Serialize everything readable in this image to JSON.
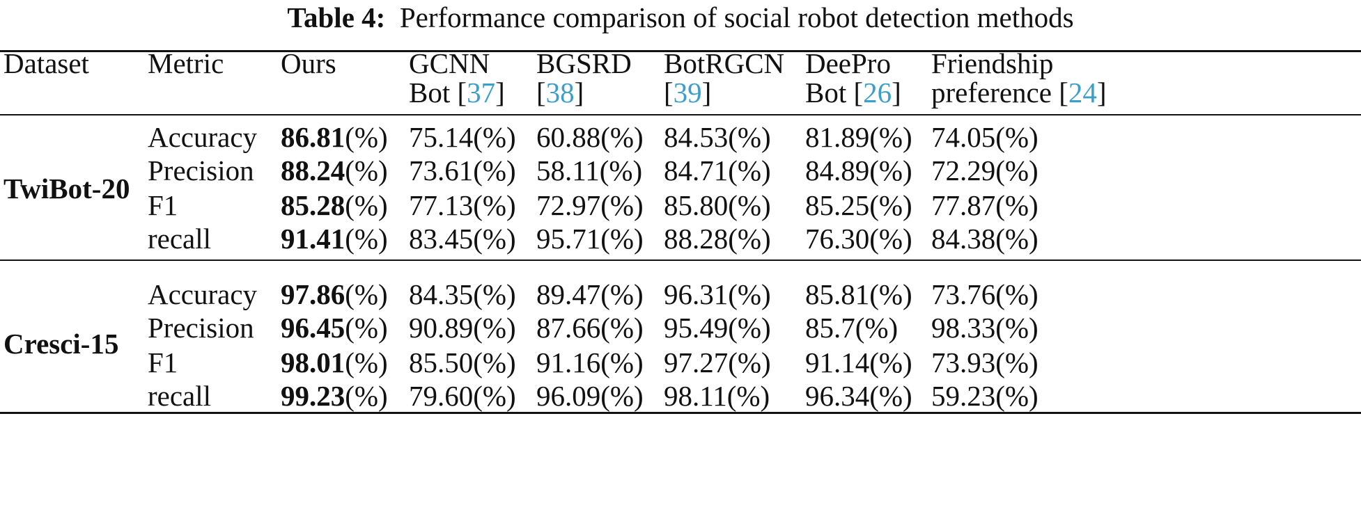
{
  "caption": {
    "label": "Table 4:",
    "text": "Performance comparison of social robot detection methods"
  },
  "table": {
    "headers": [
      {
        "line1": "Dataset",
        "line2": "",
        "ref": ""
      },
      {
        "line1": "Metric",
        "line2": "",
        "ref": ""
      },
      {
        "line1": "Ours",
        "line2": "",
        "ref": ""
      },
      {
        "line1": "GCNN",
        "line2": "Bot",
        "ref": "37"
      },
      {
        "line1": "BGSRD",
        "line2": "",
        "ref": "38"
      },
      {
        "line1": "BotRGCN",
        "line2": "",
        "ref": "39"
      },
      {
        "line1": "DeePro",
        "line2": "Bot",
        "ref": "26"
      },
      {
        "line1": "Friendship",
        "line2": "preference",
        "ref": "24"
      }
    ],
    "percent_suffix": "(%)",
    "groups": [
      {
        "dataset": "TwiBot-20",
        "rows": [
          {
            "metric": "Accuracy",
            "values": [
              "86.81",
              "75.14",
              "60.88",
              "84.53",
              "81.89",
              "74.05"
            ]
          },
          {
            "metric": "Precision",
            "values": [
              "88.24",
              "73.61",
              "58.11",
              "84.71",
              "84.89",
              "72.29"
            ]
          },
          {
            "metric": "F1",
            "values": [
              "85.28",
              "77.13",
              "72.97",
              "85.80",
              "85.25",
              "77.87"
            ]
          },
          {
            "metric": "recall",
            "values": [
              "91.41",
              "83.45",
              "95.71",
              "88.28",
              "76.30",
              "84.38"
            ]
          }
        ]
      },
      {
        "dataset": "Cresci-15",
        "rows": [
          {
            "metric": "Accuracy",
            "values": [
              "97.86",
              "84.35",
              "89.47",
              "96.31",
              "85.81",
              "73.76"
            ]
          },
          {
            "metric": "Precision",
            "values": [
              "96.45",
              "90.89",
              "87.66",
              "95.49",
              "85.7",
              "98.33"
            ]
          },
          {
            "metric": "F1",
            "values": [
              "98.01",
              "85.50",
              "91.16",
              "97.27",
              "91.14",
              "73.93"
            ]
          },
          {
            "metric": "recall",
            "values": [
              "99.23",
              "79.60",
              "96.09",
              "98.11",
              "96.34",
              "59.23"
            ]
          }
        ]
      }
    ]
  }
}
